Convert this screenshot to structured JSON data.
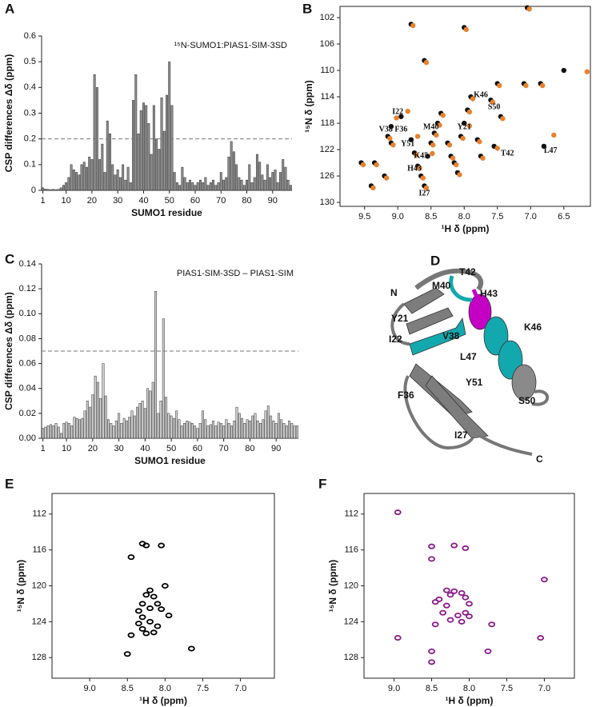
{
  "chart_data": [
    {
      "panel": "A",
      "type": "bar",
      "title": "¹⁵N-SUMO1:PIAS1-SIM-3SD",
      "xlabel": "SUMO1 residue",
      "ylabel": "CSP differences Δδ (ppm)",
      "color": "#8c8c8c",
      "x": [
        1,
        2,
        3,
        4,
        5,
        6,
        7,
        8,
        9,
        10,
        11,
        12,
        13,
        14,
        15,
        16,
        17,
        18,
        19,
        20,
        21,
        22,
        23,
        24,
        25,
        26,
        27,
        28,
        29,
        30,
        31,
        32,
        33,
        34,
        35,
        36,
        37,
        38,
        39,
        40,
        41,
        42,
        43,
        44,
        45,
        46,
        47,
        48,
        49,
        50,
        51,
        52,
        53,
        54,
        55,
        56,
        57,
        58,
        59,
        60,
        61,
        62,
        63,
        64,
        65,
        66,
        67,
        68,
        69,
        70,
        71,
        72,
        73,
        74,
        75,
        76,
        77,
        78,
        79,
        80,
        81,
        82,
        83,
        84,
        85,
        86,
        87,
        88,
        89,
        90,
        91,
        92,
        93,
        94,
        95,
        96,
        97
      ],
      "values": [
        0.01,
        0.005,
        0.004,
        0.003,
        0.004,
        0.003,
        0.004,
        0.01,
        0.02,
        0.03,
        0.05,
        0.1,
        0.08,
        0.07,
        0.06,
        0.1,
        0.11,
        0.09,
        0.13,
        0.12,
        0.45,
        0.4,
        0.12,
        0.18,
        0.07,
        0.27,
        0.22,
        0.1,
        0.06,
        0.08,
        0.05,
        0.1,
        0.04,
        0.09,
        0.03,
        0.35,
        0.45,
        0.22,
        0.31,
        0.34,
        0.33,
        0.26,
        0.14,
        0.33,
        0.2,
        0.16,
        0.36,
        0.23,
        0.37,
        0.5,
        0.33,
        0.07,
        0.03,
        0.02,
        0.09,
        0.05,
        0.03,
        0.04,
        0.03,
        0.02,
        0.03,
        0.04,
        0.03,
        0.05,
        0.02,
        0.03,
        0.04,
        0.02,
        0.03,
        0.07,
        0.04,
        0.05,
        0.13,
        0.19,
        0.15,
        0.1,
        0.05,
        0.04,
        0.02,
        0.04,
        0.1,
        0.03,
        0.05,
        0.14,
        0.11,
        0.06,
        0.04,
        0.1,
        0.05,
        0.07,
        0.08,
        0.03,
        0.07,
        0.12,
        0.09,
        0.04,
        0.02
      ],
      "xlim": [
        0.5,
        97.5
      ],
      "xticks": [
        1,
        10,
        20,
        30,
        40,
        50,
        60,
        70,
        80,
        90
      ],
      "ylim": [
        0,
        0.6
      ],
      "yticks": [
        0,
        0.1,
        0.2,
        0.3,
        0.4,
        0.5,
        0.6
      ],
      "threshold": 0.2
    },
    {
      "panel": "B",
      "type": "scatter",
      "marker": "dot",
      "xlabel": "¹H δ (ppm)",
      "ylabel": "¹⁵N δ (ppm)",
      "xlim": [
        9.87,
        6.1
      ],
      "xticks": [
        9.5,
        {
          "value": 9,
          "label": "9.0"
        },
        8.5,
        {
          "value": 8,
          "label": "8.0"
        },
        7.5,
        {
          "value": 7,
          "label": "7.0"
        },
        6.5
      ],
      "ylim": [
        130.6,
        100.3
      ],
      "yticks": [
        102,
        106,
        110,
        114,
        118,
        122,
        126,
        130
      ],
      "series": [
        {
          "color": "#111111",
          "x": [
            9.4,
            9.2,
            9.35,
            9.55,
            9.1,
            9.15,
            9.1,
            8.95,
            8.8,
            8.75,
            8.7,
            8.65,
            8.6,
            8.55,
            8.5,
            8.45,
            8.4,
            8.35,
            8.25,
            8.2,
            8.15,
            8.1,
            8.05,
            8.0,
            7.95,
            7.9,
            7.8,
            7.75,
            7.6,
            7.5,
            7.45,
            7.55,
            7.1,
            6.85,
            6.8,
            6.5,
            7.05,
            8.8,
            8.0,
            8.6
          ],
          "values": [
            127.5,
            126,
            124,
            124,
            121,
            120,
            118.5,
            117,
            120.5,
            122.5,
            124.5,
            126,
            127.5,
            123,
            121,
            119.5,
            118,
            116.5,
            121,
            123,
            124,
            125.5,
            120,
            118,
            116,
            114,
            120.5,
            123,
            114.5,
            112,
            117,
            121.5,
            112,
            112,
            121.5,
            110,
            100.5,
            103,
            103.5,
            108.5
          ]
        },
        {
          "color": "#e8822e",
          "x": [
            9.37,
            9.17,
            9.32,
            9.52,
            9.07,
            9.12,
            9.02,
            8.85,
            8.7,
            8.72,
            8.67,
            8.62,
            8.57,
            8.48,
            8.47,
            8.42,
            8.37,
            8.32,
            8.22,
            8.17,
            8.12,
            8.07,
            8.02,
            7.92,
            7.92,
            7.87,
            7.77,
            7.72,
            7.57,
            7.47,
            7.42,
            7.5,
            7.07,
            6.82,
            6.65,
            6.15,
            7.02,
            8.77,
            7.97,
            8.57
          ],
          "values": [
            127.8,
            126.3,
            124.3,
            124.3,
            121.3,
            120.3,
            117.2,
            116.2,
            120,
            122.8,
            124.8,
            126.3,
            127.8,
            122.6,
            121.3,
            119.8,
            118.3,
            116.8,
            121.3,
            123.3,
            124.3,
            125.8,
            120.3,
            118.4,
            116.3,
            114.3,
            120.8,
            123.3,
            114.8,
            112.3,
            117.3,
            121.8,
            112.3,
            112.3,
            119.8,
            110.2,
            100.7,
            103.2,
            103.8,
            108.8
          ]
        }
      ],
      "annotations": [
        {
          "text": "I22",
          "x": 9.0,
          "y": 116.3
        },
        {
          "text": "V38",
          "x": 9.18,
          "y": 119.0
        },
        {
          "text": "F36",
          "x": 8.95,
          "y": 119.0
        },
        {
          "text": "M40",
          "x": 8.5,
          "y": 118.6
        },
        {
          "text": "K46",
          "x": 7.75,
          "y": 113.8
        },
        {
          "text": "S50",
          "x": 7.55,
          "y": 115.6
        },
        {
          "text": "Y21",
          "x": 8.0,
          "y": 118.6
        },
        {
          "text": "T42",
          "x": 7.35,
          "y": 122.6
        },
        {
          "text": "L47",
          "x": 6.7,
          "y": 122.2
        },
        {
          "text": "Y51",
          "x": 8.85,
          "y": 121.2
        },
        {
          "text": "K45",
          "x": 8.65,
          "y": 123.0
        },
        {
          "text": "H43",
          "x": 8.75,
          "y": 124.9
        },
        {
          "text": "I27",
          "x": 8.6,
          "y": 128.7
        }
      ]
    },
    {
      "panel": "C",
      "type": "bar",
      "title": "PIAS1-SIM-3SD – PIAS1-SIM",
      "xlabel": "SUMO1 residue",
      "ylabel": "CSP differences Δδ (ppm)",
      "color": "#cfcfcf",
      "x": [
        1,
        2,
        3,
        4,
        5,
        6,
        7,
        8,
        9,
        10,
        11,
        12,
        13,
        14,
        15,
        16,
        17,
        18,
        19,
        20,
        21,
        22,
        23,
        24,
        25,
        26,
        27,
        28,
        29,
        30,
        31,
        32,
        33,
        34,
        35,
        36,
        37,
        38,
        39,
        40,
        41,
        42,
        43,
        44,
        45,
        46,
        47,
        48,
        49,
        50,
        51,
        52,
        53,
        54,
        55,
        56,
        57,
        58,
        59,
        60,
        61,
        62,
        63,
        64,
        65,
        66,
        67,
        68,
        69,
        70,
        71,
        72,
        73,
        74,
        75,
        76,
        77,
        78,
        79,
        80,
        81,
        82,
        83,
        84,
        85,
        86,
        87,
        88,
        89,
        90,
        91,
        92,
        93,
        94,
        95,
        96,
        97,
        98
      ],
      "values": [
        0.008,
        0.009,
        0.01,
        0.011,
        0.01,
        0.012,
        0.009,
        0.004,
        0.012,
        0.013,
        0.012,
        0.01,
        0.017,
        0.016,
        0.015,
        0.016,
        0.022,
        0.03,
        0.025,
        0.035,
        0.05,
        0.045,
        0.032,
        0.06,
        0.034,
        0.015,
        0.012,
        0.01,
        0.014,
        0.02,
        0.012,
        0.016,
        0.014,
        0.017,
        0.022,
        0.018,
        0.025,
        0.028,
        0.03,
        0.024,
        0.04,
        0.038,
        0.045,
        0.118,
        0.02,
        0.03,
        0.096,
        0.033,
        0.02,
        0.018,
        0.016,
        0.022,
        0.015,
        0.01,
        0.012,
        0.014,
        0.013,
        0.012,
        0.01,
        0.008,
        0.012,
        0.022,
        0.015,
        0.01,
        0.011,
        0.014,
        0.01,
        0.013,
        0.012,
        0.01,
        0.015,
        0.012,
        0.01,
        0.014,
        0.025,
        0.02,
        0.016,
        0.012,
        0.015,
        0.014,
        0.018,
        0.02,
        0.014,
        0.012,
        0.015,
        0.022,
        0.026,
        0.018,
        0.014,
        0.012,
        0.02,
        0.015,
        0.012,
        0.01,
        0.014,
        0.012,
        0.01,
        0.01
      ],
      "xlim": [
        0.5,
        98.5
      ],
      "xticks": [
        1,
        10,
        20,
        30,
        40,
        50,
        60,
        70,
        80,
        90
      ],
      "ylim": [
        0,
        0.14
      ],
      "yticks": [
        {
          "value": 0,
          "label": "0.00"
        },
        0.02,
        0.04,
        0.06,
        0.08,
        {
          "value": 0.1,
          "label": "0.10"
        },
        0.12,
        0.14
      ],
      "threshold": 0.07
    },
    {
      "panel": "E",
      "type": "scatter",
      "marker": "contour",
      "xlabel": "¹H δ (ppm)",
      "ylabel": "¹⁵N δ (ppm)",
      "xlim": [
        9.5,
        6.55
      ],
      "xticks": [
        {
          "value": 9,
          "label": "9.0"
        },
        8.5,
        {
          "value": 8,
          "label": "8.0"
        },
        7.5,
        {
          "value": 7,
          "label": "7.0"
        }
      ],
      "ylim": [
        130.3,
        109.7
      ],
      "yticks": [
        112,
        116,
        120,
        124,
        128
      ],
      "series": [
        {
          "color": "#000000",
          "x": [
            8.3,
            8.25,
            8.05,
            8.45,
            8.0,
            8.2,
            8.25,
            8.15,
            8.3,
            8.1,
            8.2,
            8.35,
            8.05,
            8.3,
            8.2,
            8.35,
            7.95,
            8.1,
            8.3,
            8.25,
            8.15,
            8.45,
            7.65,
            8.5
          ],
          "values": [
            115.3,
            115.5,
            115.5,
            116.8,
            120,
            120.5,
            121,
            121.2,
            122,
            122,
            122.5,
            122.8,
            122.6,
            123.5,
            124,
            124.2,
            123.3,
            124.5,
            124.8,
            125.3,
            125.2,
            125.5,
            127,
            127.6
          ]
        }
      ]
    },
    {
      "panel": "F",
      "type": "scatter",
      "marker": "contour",
      "xlabel": "¹H δ (ppm)",
      "ylabel": "¹⁵N δ (ppm)",
      "xlim": [
        9.4,
        6.6
      ],
      "xticks": [
        {
          "value": 9,
          "label": "9.0"
        },
        8.5,
        {
          "value": 8,
          "label": "8.0"
        },
        7.5,
        {
          "value": 7,
          "label": "7.0"
        }
      ],
      "ylim": [
        130.3,
        109.7
      ],
      "yticks": [
        112,
        116,
        120,
        124,
        128
      ],
      "series": [
        {
          "color": "#8b1a8b",
          "x": [
            8.95,
            8.5,
            8.2,
            8.05,
            8.5,
            7.0,
            8.3,
            8.2,
            8.25,
            8.4,
            8.1,
            8.05,
            8.45,
            8.3,
            8.0,
            8.35,
            8.15,
            8.05,
            8.0,
            8.25,
            8.1,
            7.7,
            8.45,
            8.95,
            7.05,
            8.5,
            8.5,
            7.75
          ],
          "values": [
            111.8,
            115.6,
            115.5,
            115.8,
            117,
            119.3,
            120.5,
            120.6,
            121,
            121.5,
            120.8,
            121.3,
            121.8,
            122.2,
            122,
            123,
            123.3,
            123,
            123.4,
            123.8,
            124,
            124.3,
            124.3,
            125.8,
            125.8,
            127.3,
            128.5,
            127.3
          ]
        }
      ]
    }
  ],
  "structure": {
    "panel": "D",
    "labels": {
      "n": "N",
      "c": "C",
      "y21": "Y21",
      "i22": "I22",
      "m40": "M40",
      "t42": "T42",
      "h43": "H43",
      "k46": "K46",
      "v38": "V38",
      "l47": "L47",
      "s50": "S50",
      "y51": "Y51",
      "f36": "F36",
      "i27": "I27"
    }
  }
}
